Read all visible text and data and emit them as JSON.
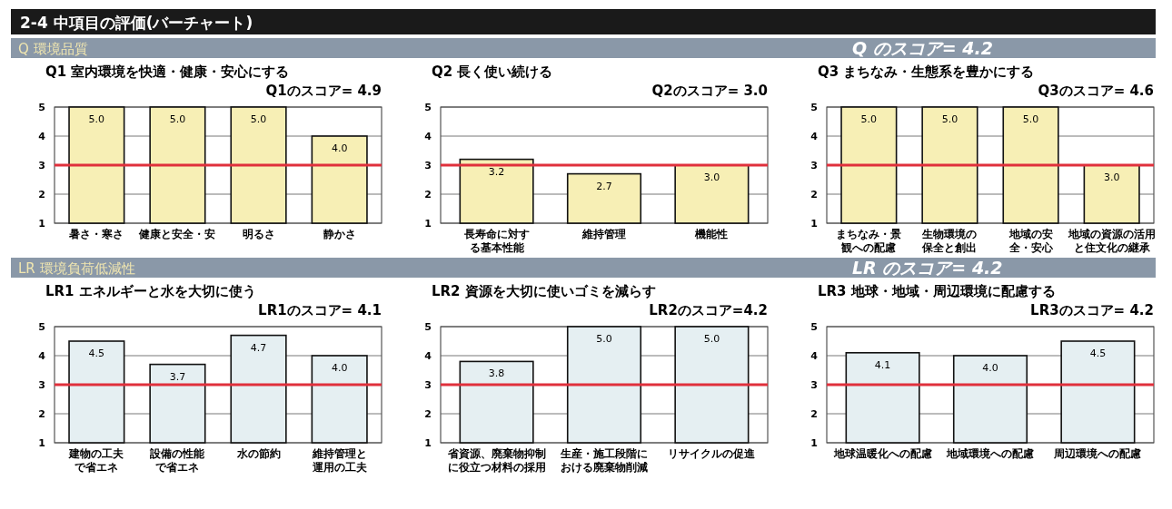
{
  "chart_data": [
    {
      "type": "bar",
      "title": "Q1 室内環境を快適・健康・安心にする",
      "subtitle": "Q1のスコア= 4.9",
      "annotations": [
        "2-4 中項目の評価(バーチャート)",
        "Q 環境品質",
        "Q のスコア= 4.2"
      ],
      "categories": [
        "暑さ・寒さ",
        "健康と安全・安",
        "明るさ",
        "静かさ"
      ],
      "values": [
        5.0,
        5.0,
        5.0,
        4.0
      ],
      "value_labels": [
        "5.0",
        "5.0",
        "5.0",
        "4.0"
      ],
      "color": "#f7efb5",
      "ylim": [
        1,
        5
      ],
      "yticks": [
        1,
        2,
        3,
        4,
        5
      ],
      "grid": "y",
      "ref_lines": [
        {
          "axis": "y",
          "value": 3,
          "color": "#e0303c"
        }
      ]
    },
    {
      "type": "bar",
      "title": "Q2 長く使い続ける",
      "subtitle": "Q2のスコア= 3.0",
      "categories": [
        "長寿命に対する基本性能",
        "維持管理",
        "機能性"
      ],
      "values": [
        3.2,
        2.7,
        3.0
      ],
      "value_labels": [
        "3.2",
        "2.7",
        "3.0"
      ],
      "color": "#f7efb5",
      "ylim": [
        1,
        5
      ],
      "yticks": [
        1,
        2,
        3,
        4,
        5
      ],
      "grid": "y",
      "ref_lines": [
        {
          "axis": "y",
          "value": 3,
          "color": "#e0303c"
        }
      ]
    },
    {
      "type": "bar",
      "title": "Q3 まちなみ・生態系を豊かにする",
      "subtitle": "Q3のスコア= 4.6",
      "categories": [
        "まちなみ・景観への配慮",
        "生物環境の保全と創出",
        "地域の安全・安心",
        "地域の資源の活用と住文化の継承"
      ],
      "values": [
        5.0,
        5.0,
        5.0,
        3.0
      ],
      "value_labels": [
        "5.0",
        "5.0",
        "5.0",
        "3.0"
      ],
      "color": "#f7efb5",
      "ylim": [
        1,
        5
      ],
      "yticks": [
        1,
        2,
        3,
        4,
        5
      ],
      "grid": "y",
      "ref_lines": [
        {
          "axis": "y",
          "value": 3,
          "color": "#e0303c"
        }
      ]
    },
    {
      "type": "bar",
      "title": "LR1 エネルギーと水を大切に使う",
      "subtitle": "LR1のスコア= 4.1",
      "annotations": [
        "LR 環境負荷低減性",
        "LR のスコア= 4.2"
      ],
      "categories": [
        "建物の工夫で省エネ",
        "設備の性能で省エネ",
        "水の節約",
        "維持管理と運用の工夫"
      ],
      "values": [
        4.5,
        3.7,
        4.7,
        4.0
      ],
      "value_labels": [
        "4.5",
        "3.7",
        "4.7",
        "4.0"
      ],
      "color": "#e5eff2",
      "ylim": [
        1,
        5
      ],
      "yticks": [
        1,
        2,
        3,
        4,
        5
      ],
      "grid": "y",
      "ref_lines": [
        {
          "axis": "y",
          "value": 3,
          "color": "#e0303c"
        }
      ]
    },
    {
      "type": "bar",
      "title": "LR2 資源を大切に使いゴミを減らす",
      "subtitle": "LR2のスコア=4.2",
      "categories": [
        "省資源、廃棄物抑制に役立つ材料の採用",
        "生産・施工段階における廃棄物削減",
        "リサイクルの促進"
      ],
      "values": [
        3.8,
        5.0,
        5.0
      ],
      "value_labels": [
        "3.8",
        "5.0",
        "5.0"
      ],
      "color": "#e5eff2",
      "ylim": [
        1,
        5
      ],
      "yticks": [
        1,
        2,
        3,
        4,
        5
      ],
      "grid": "y",
      "ref_lines": [
        {
          "axis": "y",
          "value": 3,
          "color": "#e0303c"
        }
      ]
    },
    {
      "type": "bar",
      "title": "LR3 地球・地域・周辺環境に配慮する",
      "subtitle": "LR3のスコア= 4.2",
      "categories": [
        "地球温暖化への配慮",
        "地域環境への配慮",
        "周辺環境への配慮"
      ],
      "values": [
        4.1,
        4.0,
        4.5
      ],
      "value_labels": [
        "4.1",
        "4.0",
        "4.5"
      ],
      "color": "#e5eff2",
      "ylim": [
        1,
        5
      ],
      "yticks": [
        1,
        2,
        3,
        4,
        5
      ],
      "grid": "y",
      "ref_lines": [
        {
          "axis": "y",
          "value": 3,
          "color": "#e0303c"
        }
      ]
    }
  ]
}
